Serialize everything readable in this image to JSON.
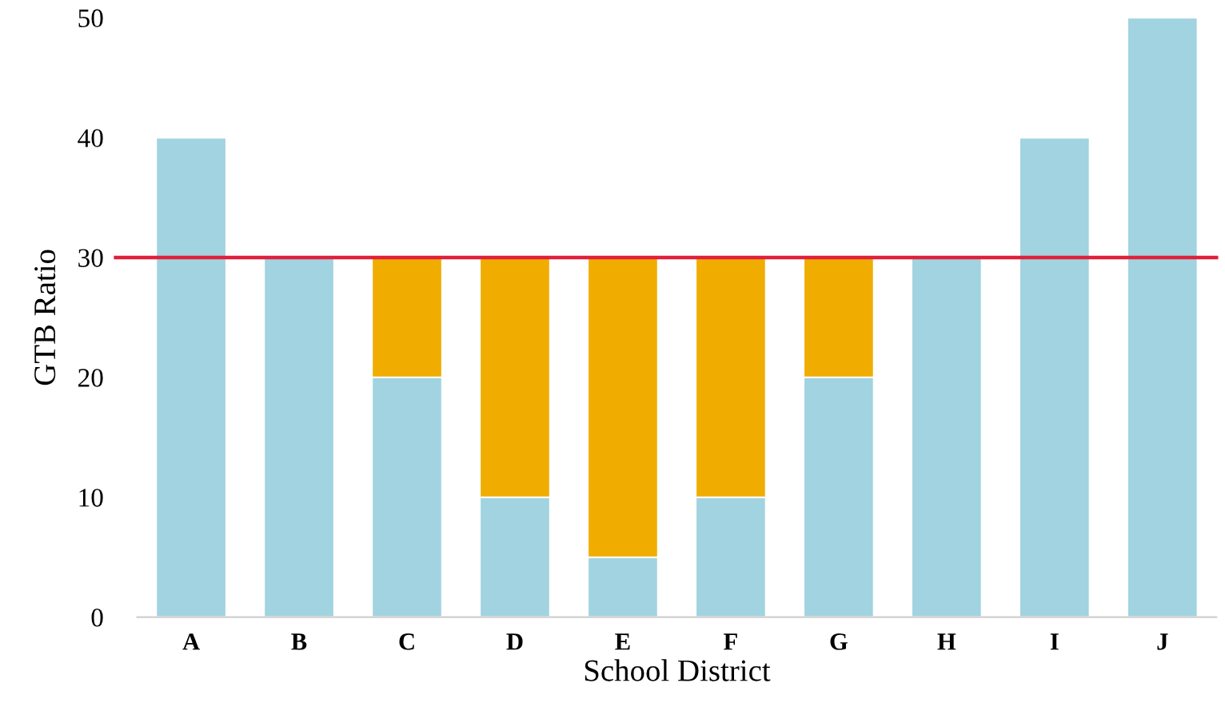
{
  "chart_data": {
    "type": "bar",
    "stacked": true,
    "xlabel": "School District",
    "ylabel": "GTB Ratio",
    "categories": [
      "A",
      "B",
      "C",
      "D",
      "E",
      "F",
      "G",
      "H",
      "I",
      "J"
    ],
    "series": [
      {
        "color": "#a1d3e0",
        "values": [
          40,
          30,
          20,
          10,
          5,
          10,
          20,
          30,
          40,
          50
        ]
      },
      {
        "color": "#f0ad00",
        "values": [
          0,
          0,
          10,
          20,
          25,
          20,
          10,
          0,
          0,
          0
        ]
      }
    ],
    "ylim": [
      0,
      50
    ],
    "yticks": [
      0,
      10,
      20,
      30,
      40,
      50
    ],
    "grid": false,
    "legend": false,
    "ref_lines": [
      {
        "axis": "y",
        "value": 30,
        "color": "#e0203a",
        "line_style": "solid"
      }
    ]
  }
}
